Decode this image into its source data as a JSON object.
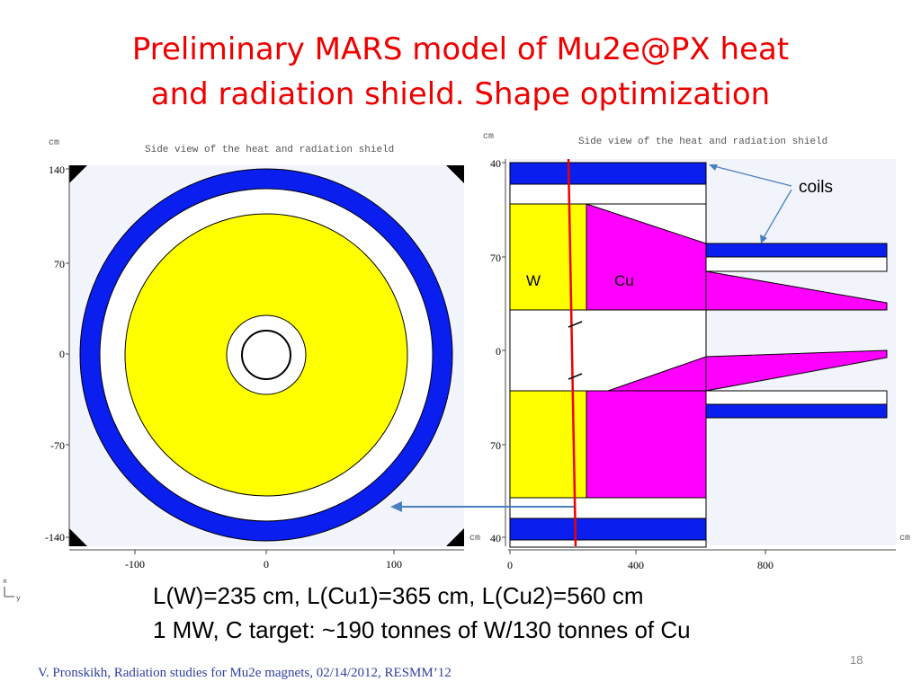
{
  "slide": {
    "title_line1": "Preliminary MARS model of Mu2e@PX heat",
    "title_line2": "and radiation shield. Shape optimization",
    "summary_line1": "L(W)=235 cm, L(Cu1)=365 cm, L(Cu2)=560 cm",
    "summary_line2": "1 MW, C target: ~190 tonnes of W/130 tonnes of Cu",
    "footer": "V. Pronskikh, Radiation studies for Mu2e magnets, 02/14/2012, RESMM’12",
    "page_number": "18"
  },
  "left_plot": {
    "caption": "Side view of the heat and radiation shield",
    "unit": "cm",
    "y_ticks": [
      "140",
      "70",
      "0",
      "-70",
      "-140"
    ],
    "x_ticks": [
      "-100",
      "0",
      "100"
    ],
    "axis_glyph_x": "x",
    "axis_glyph_y": "y"
  },
  "right_plot": {
    "caption": "Side view of the heat and radiation shield",
    "unit_top": "cm",
    "unit_left": "cm",
    "unit_right": "cm",
    "y_ticks": [
      "40",
      "70",
      "0",
      "70",
      "40"
    ],
    "x_ticks": [
      "0",
      "400",
      "800"
    ],
    "label_w": "W",
    "label_cu": "Cu",
    "label_coils": "coils"
  },
  "colors": {
    "title": "#ee0000",
    "coil_blue": "#0a1ef0",
    "tungsten_yellow": "#ffff00",
    "copper_magenta": "#ff00ff",
    "plot_background": "#f2f4fc",
    "arrow": "#4a7fbf",
    "red_line": "#ee0000"
  }
}
